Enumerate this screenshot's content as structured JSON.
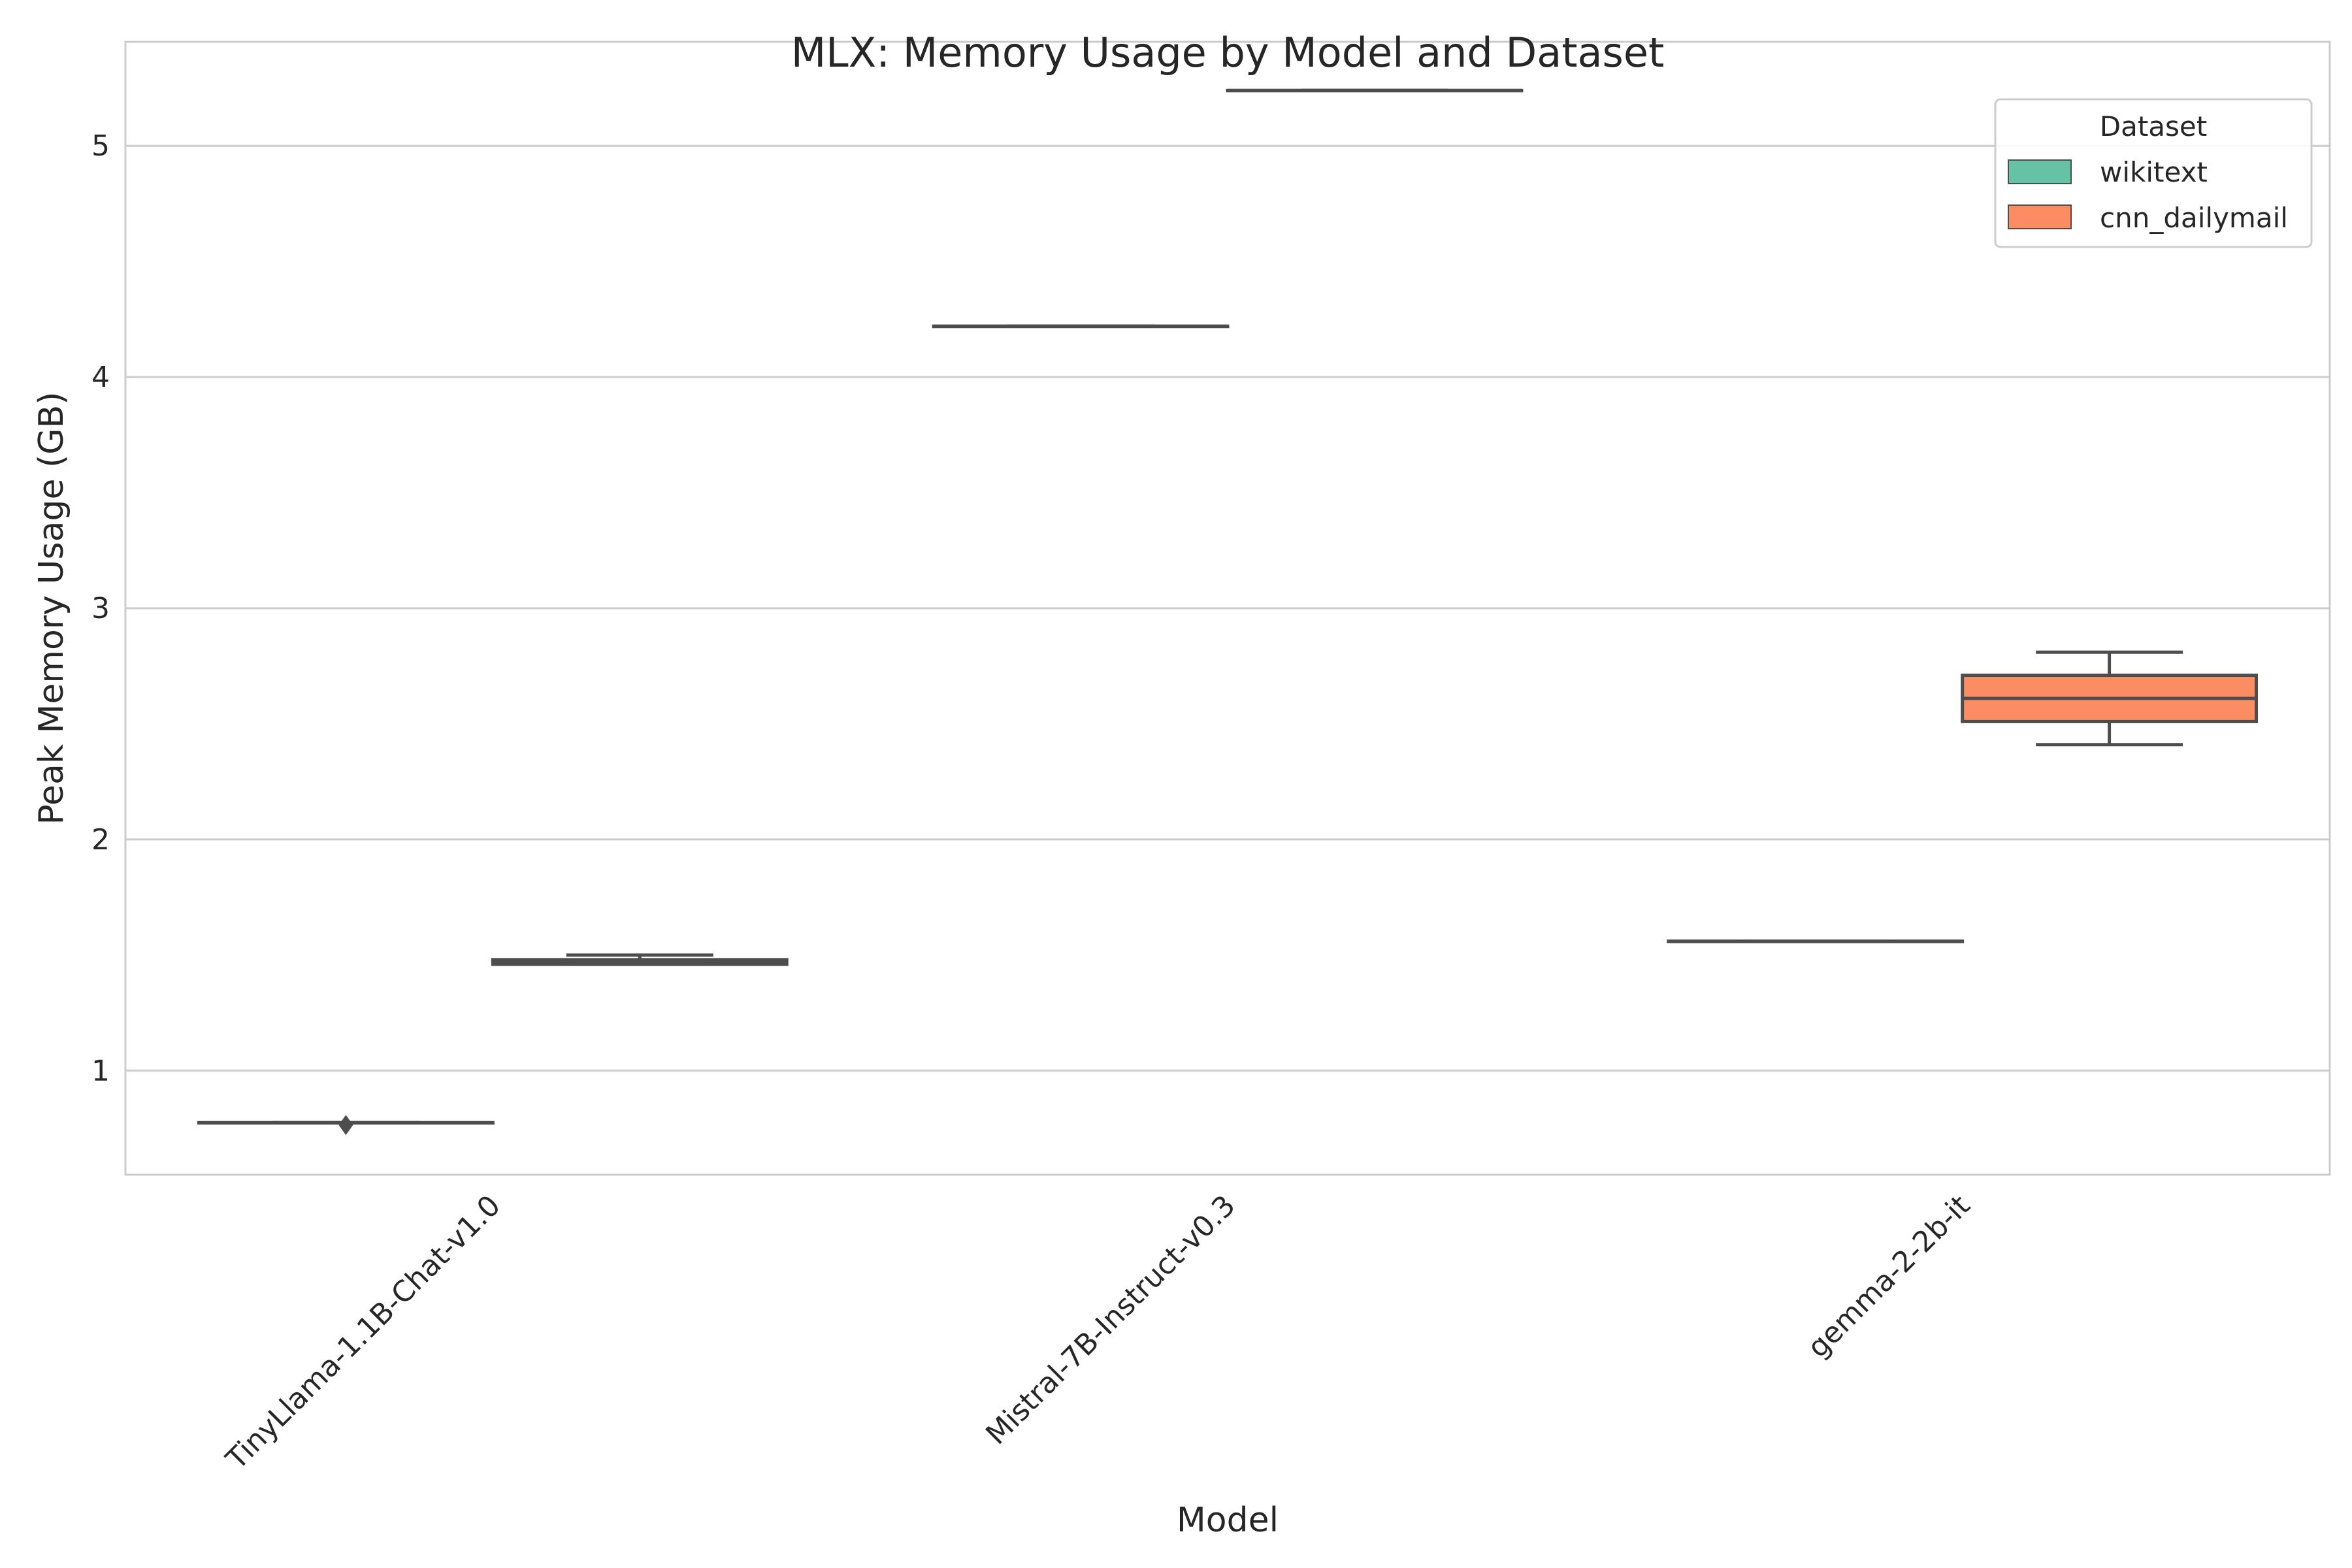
{
  "chart_data": {
    "type": "box",
    "title": "MLX: Memory Usage by Model and Dataset",
    "xlabel": "Model",
    "ylabel": "Peak Memory Usage (GB)",
    "ylim": [
      0.55,
      5.45
    ],
    "yticks": [
      1,
      2,
      3,
      4,
      5
    ],
    "grid": true,
    "legend_position": "top-right",
    "categories": [
      "TinyLlama-1.1B-Chat-v1.0",
      "Mistral-7B-Instruct-v0.3",
      "gemma-2-2b-it"
    ],
    "legend": {
      "title": "Dataset",
      "entries": [
        {
          "name": "wikitext",
          "color": "#66c2a5"
        },
        {
          "name": "cnn_dailymail",
          "color": "#fc8d62"
        }
      ]
    },
    "series": [
      {
        "name": "wikitext",
        "color": "#66c2a5",
        "boxes": [
          {
            "category": "TinyLlama-1.1B-Chat-v1.0",
            "min": 0.775,
            "q1": 0.775,
            "median": 0.775,
            "q3": 0.775,
            "max": 0.775,
            "outliers": [
              0.765
            ]
          },
          {
            "category": "Mistral-7B-Instruct-v0.3",
            "min": 4.22,
            "q1": 4.22,
            "median": 4.22,
            "q3": 4.22,
            "max": 4.22,
            "outliers": []
          },
          {
            "category": "gemma-2-2b-it",
            "min": 1.56,
            "q1": 1.56,
            "median": 1.56,
            "q3": 1.56,
            "max": 1.56,
            "outliers": []
          }
        ]
      },
      {
        "name": "cnn_dailymail",
        "color": "#fc8d62",
        "boxes": [
          {
            "category": "TinyLlama-1.1B-Chat-v1.0",
            "min": 1.46,
            "q1": 1.46,
            "median": 1.47,
            "q3": 1.48,
            "max": 1.5,
            "outliers": []
          },
          {
            "category": "Mistral-7B-Instruct-v0.3",
            "min": 5.24,
            "q1": 5.24,
            "median": 5.24,
            "q3": 5.24,
            "max": 5.24,
            "outliers": []
          },
          {
            "category": "gemma-2-2b-it",
            "min": 2.41,
            "q1": 2.51,
            "median": 2.61,
            "q3": 2.71,
            "max": 2.81,
            "outliers": []
          }
        ]
      }
    ]
  }
}
